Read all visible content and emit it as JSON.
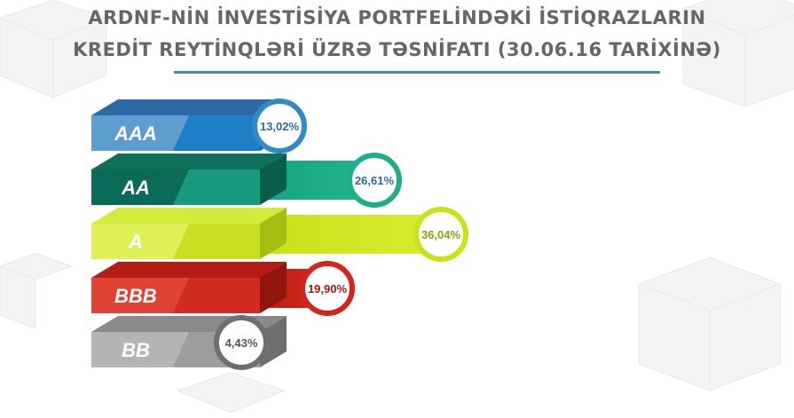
{
  "title_line1": "ARDNF-NİN İNVESTİSİYA PORTFELİNDƏKİ İSTİQRAZLARIN",
  "title_line2": "KREDİT REYTİNQLƏRİ ÜZRƏ TƏSNİFATI (30.06.16 TARİXİNƏ)",
  "chart_data": {
    "type": "bar",
    "orientation": "horizontal",
    "title": "ARDNF-NİN İNVESTİSİYA PORTFELİNDƏKİ İSTİQRAZLARIN KREDİT REYTİNQLƏRİ ÜZRƏ TƏSNİFATI (30.06.16 TARİXİNƏ)",
    "categories": [
      "AAA",
      "AA",
      "A",
      "BBB",
      "BB"
    ],
    "values": [
      13.02,
      26.61,
      36.04,
      19.9,
      4.43
    ],
    "value_labels": [
      "13,02%",
      "26,61%",
      "36,04%",
      "19,90%",
      "4,43%"
    ],
    "unit": "%",
    "legend": "none",
    "grid": false
  },
  "colors": {
    "title": "#666666",
    "underline": "#3f8fbe",
    "bars": [
      {
        "front": "#1f7fc6",
        "top": "#2b6aa7",
        "side": "#17609a",
        "label_bg": "#5d9ecf",
        "bar_start": "#2b86c8",
        "bar_end": "#4a8cff",
        "ring": "#2f8ac6"
      },
      {
        "front": "#179a7e",
        "top": "#0e6f5b",
        "side": "#0c5e4c",
        "label_bg": "#0b6b58",
        "bar_start": "#16a080",
        "bar_end": "#22b890",
        "ring": "#1fae8a"
      },
      {
        "front": "#c8e021",
        "top": "#d4ea3c",
        "side": "#a6bd12",
        "label_bg": "#dff058",
        "bar_start": "#c9e21a",
        "bar_end": "#d9ec30",
        "ring": "#c9e21a"
      },
      {
        "front": "#d12b1f",
        "top": "#b51d14",
        "side": "#8f150e",
        "label_bg": "#e04234",
        "bar_start": "#b81d14",
        "bar_end": "#d9261c",
        "ring": "#d4251c"
      },
      {
        "front": "#9d9d9d",
        "top": "#8a8a8a",
        "side": "#6f6f6f",
        "label_bg": "#b4b4b4",
        "bar_start": "#8e8e8e",
        "bar_end": "#a0a0a0",
        "ring": "#6f6f6f"
      }
    ]
  }
}
